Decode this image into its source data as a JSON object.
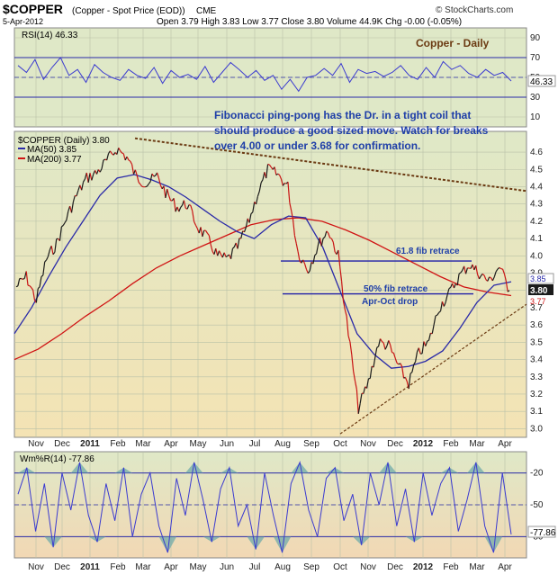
{
  "header": {
    "symbol": "$COPPER",
    "description": "(Copper - Spot Price (EOD))",
    "exchange": "CME",
    "date": "5-Apr-2012",
    "ohlc": "Open 3.79  High 3.83  Low 3.77  Close 3.80  Volume 44.9K  Chg -0.00 (-0.05%)",
    "chg_arrow": "▼",
    "watermark": "© StockCharts.com"
  },
  "chart_data": [
    {
      "type": "line",
      "panel": "rsi",
      "label": "RSI(14) 46.33",
      "last_value": "46.33",
      "ylim": [
        0,
        100
      ],
      "y_ticks": [
        "90",
        "70",
        "50",
        "30",
        "10"
      ],
      "reference_lines": [
        70,
        30
      ],
      "annotation": "Copper - Daily",
      "values": [
        62,
        55,
        68,
        48,
        60,
        70,
        52,
        58,
        45,
        63,
        55,
        50,
        47,
        58,
        52,
        49,
        60,
        44,
        57,
        50,
        53,
        48,
        61,
        45,
        55,
        65,
        58,
        50,
        57,
        47,
        52,
        38,
        48,
        36,
        50,
        52,
        59,
        52,
        64,
        45,
        58,
        54,
        56,
        51,
        55,
        62,
        52,
        48,
        60,
        50,
        66,
        58,
        62,
        54,
        50,
        58,
        52,
        55,
        46.33
      ]
    },
    {
      "type": "line",
      "panel": "price",
      "legend": [
        {
          "label": "$COPPER (Daily) 3.80",
          "color": "#222222"
        },
        {
          "label": "MA(50) 3.85",
          "color": "#2a2aa8"
        },
        {
          "label": "MA(200) 3.77",
          "color": "#d01414"
        }
      ],
      "ylim": [
        2.95,
        4.72
      ],
      "y_ticks": [
        "4.6",
        "4.5",
        "4.4",
        "4.3",
        "4.2",
        "4.1",
        "4.0",
        "3.9",
        "3.8",
        "3.7",
        "3.6",
        "3.5",
        "3.4",
        "3.3",
        "3.2",
        "3.1",
        "3.0"
      ],
      "last_labels": [
        "3.85",
        "3.80",
        "3.77"
      ],
      "x_labels": [
        "Nov",
        "Dec",
        "2011",
        "Feb",
        "Mar",
        "Apr",
        "May",
        "Jun",
        "Jul",
        "Aug",
        "Sep",
        "Oct",
        "Nov",
        "Dec",
        "2012",
        "Feb",
        "Mar",
        "Apr"
      ],
      "series": [
        {
          "name": "$COPPER (Daily)",
          "values": [
            3.82,
            3.88,
            3.74,
            3.98,
            4.07,
            4.22,
            4.35,
            4.45,
            4.48,
            4.55,
            4.62,
            4.57,
            4.45,
            4.42,
            4.46,
            4.35,
            4.28,
            4.3,
            4.17,
            4.1,
            4.0,
            3.98,
            4.05,
            4.18,
            4.36,
            4.5,
            4.47,
            4.4,
            4.02,
            3.92,
            4.06,
            4.15,
            4.0,
            3.55,
            3.12,
            3.27,
            3.5,
            3.48,
            3.36,
            3.26,
            3.44,
            3.5,
            3.7,
            3.78,
            3.88,
            3.95,
            3.9,
            3.85,
            3.94,
            3.8
          ]
        },
        {
          "name": "MA(50)",
          "values": [
            3.55,
            3.7,
            3.88,
            4.05,
            4.2,
            4.35,
            4.45,
            4.47,
            4.44,
            4.4,
            4.34,
            4.27,
            4.2,
            4.14,
            4.1,
            4.18,
            4.23,
            4.22,
            4.05,
            3.8,
            3.55,
            3.43,
            3.35,
            3.36,
            3.39,
            3.45,
            3.58,
            3.73,
            3.83,
            3.85
          ]
        },
        {
          "name": "MA(200)",
          "values": [
            3.4,
            3.46,
            3.55,
            3.65,
            3.74,
            3.84,
            3.93,
            4.0,
            4.06,
            4.12,
            4.18,
            4.21,
            4.22,
            4.2,
            4.15,
            4.09,
            4.02,
            3.95,
            3.88,
            3.82,
            3.79,
            3.77
          ]
        }
      ],
      "annotations": [
        "Fibonacci ping-pong has the Dr. in a tight coil that",
        "should produce a good sized move. Watch for breaks",
        "over 4.00 or under 3.68 for confirmation.",
        "61.8 fib retrace",
        "50% fib retrace",
        "Apr-Oct drop"
      ],
      "fib_levels": [
        3.97,
        3.78
      ]
    },
    {
      "type": "line",
      "panel": "williams",
      "label": "Wm%R(14) -77.86",
      "last_value": "-77.86",
      "ylim": [
        -100,
        0
      ],
      "y_ticks": [
        "-20",
        "-50",
        "-80"
      ],
      "reference_lines": [
        -20,
        -80
      ],
      "values": [
        -40,
        -15,
        -75,
        -30,
        -90,
        -20,
        -55,
        -10,
        -60,
        -85,
        -30,
        -65,
        -15,
        -80,
        -40,
        -20,
        -70,
        -95,
        -25,
        -60,
        -10,
        -45,
        -85,
        -35,
        -15,
        -70,
        -50,
        -92,
        -20,
        -60,
        -95,
        -30,
        -10,
        -55,
        -80,
        -25,
        -15,
        -65,
        -40,
        -88,
        -20,
        -50,
        -10,
        -70,
        -35,
        -85,
        -20,
        -60,
        -30,
        -15,
        -75,
        -45,
        -10,
        -70,
        -95,
        -20,
        -77.86
      ]
    }
  ],
  "colors": {
    "rsi_bg": "#dfe8c7",
    "price_bg_top": "#dfe8c7",
    "price_bg_bottom": "#f4e3b4",
    "will_bg_top": "#dfe8c7",
    "will_bg_bottom": "#f2d8b4",
    "price": "#1b1b1b",
    "price_down": "#c81414",
    "ma50": "#2a2aa8",
    "ma200": "#d01414",
    "indicator": "#3a3ad0",
    "fill": "#6aa8a8",
    "grid": "#b9c1a8",
    "text_blue": "#1f3fa8",
    "text_brown": "#6b3a12",
    "trend": "#6b3a12"
  }
}
